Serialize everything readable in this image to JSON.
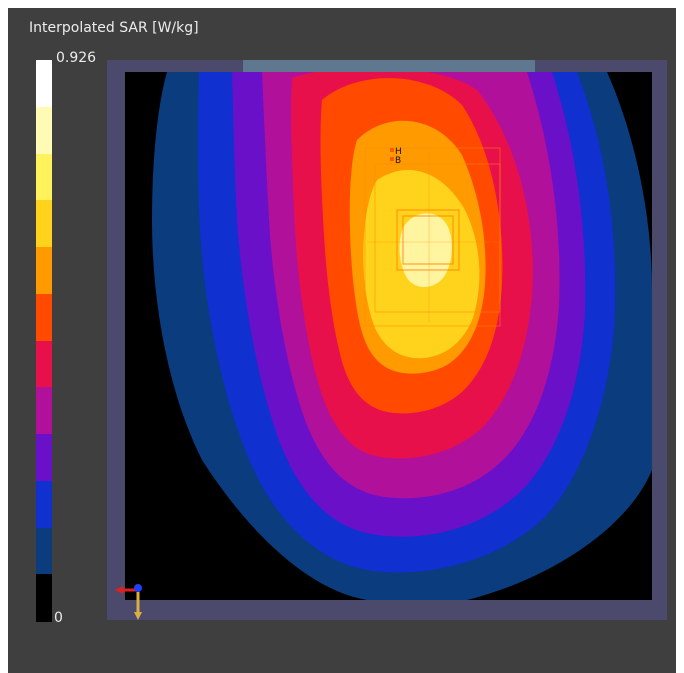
{
  "legend": {
    "title": "Interpolated SAR [W/kg]",
    "max_label": "0.926",
    "min_label": "0",
    "colors_top_to_bottom": [
      "#ffffff",
      "#fffbb4",
      "#fff25c",
      "#ffd21c",
      "#ff9a00",
      "#ff4a00",
      "#e8104a",
      "#b0109a",
      "#6a10c8",
      "#1030d0",
      "#0a3c7e",
      "#000000"
    ]
  },
  "plot": {
    "frame_color": "#4b4a6c",
    "top_strip_color": "#5f7890",
    "background_color": "#000000",
    "contour_colors_outer_to_inner": [
      "#0a3c7e",
      "#1030d0",
      "#6a10c8",
      "#b0109a",
      "#e8104a",
      "#ff4a00",
      "#ff9a00",
      "#ffd21c",
      "#fff4a0"
    ],
    "probe_labels": [
      "H",
      "B"
    ],
    "axis_triad": [
      "x-axis",
      "y-axis",
      "z-axis"
    ]
  }
}
